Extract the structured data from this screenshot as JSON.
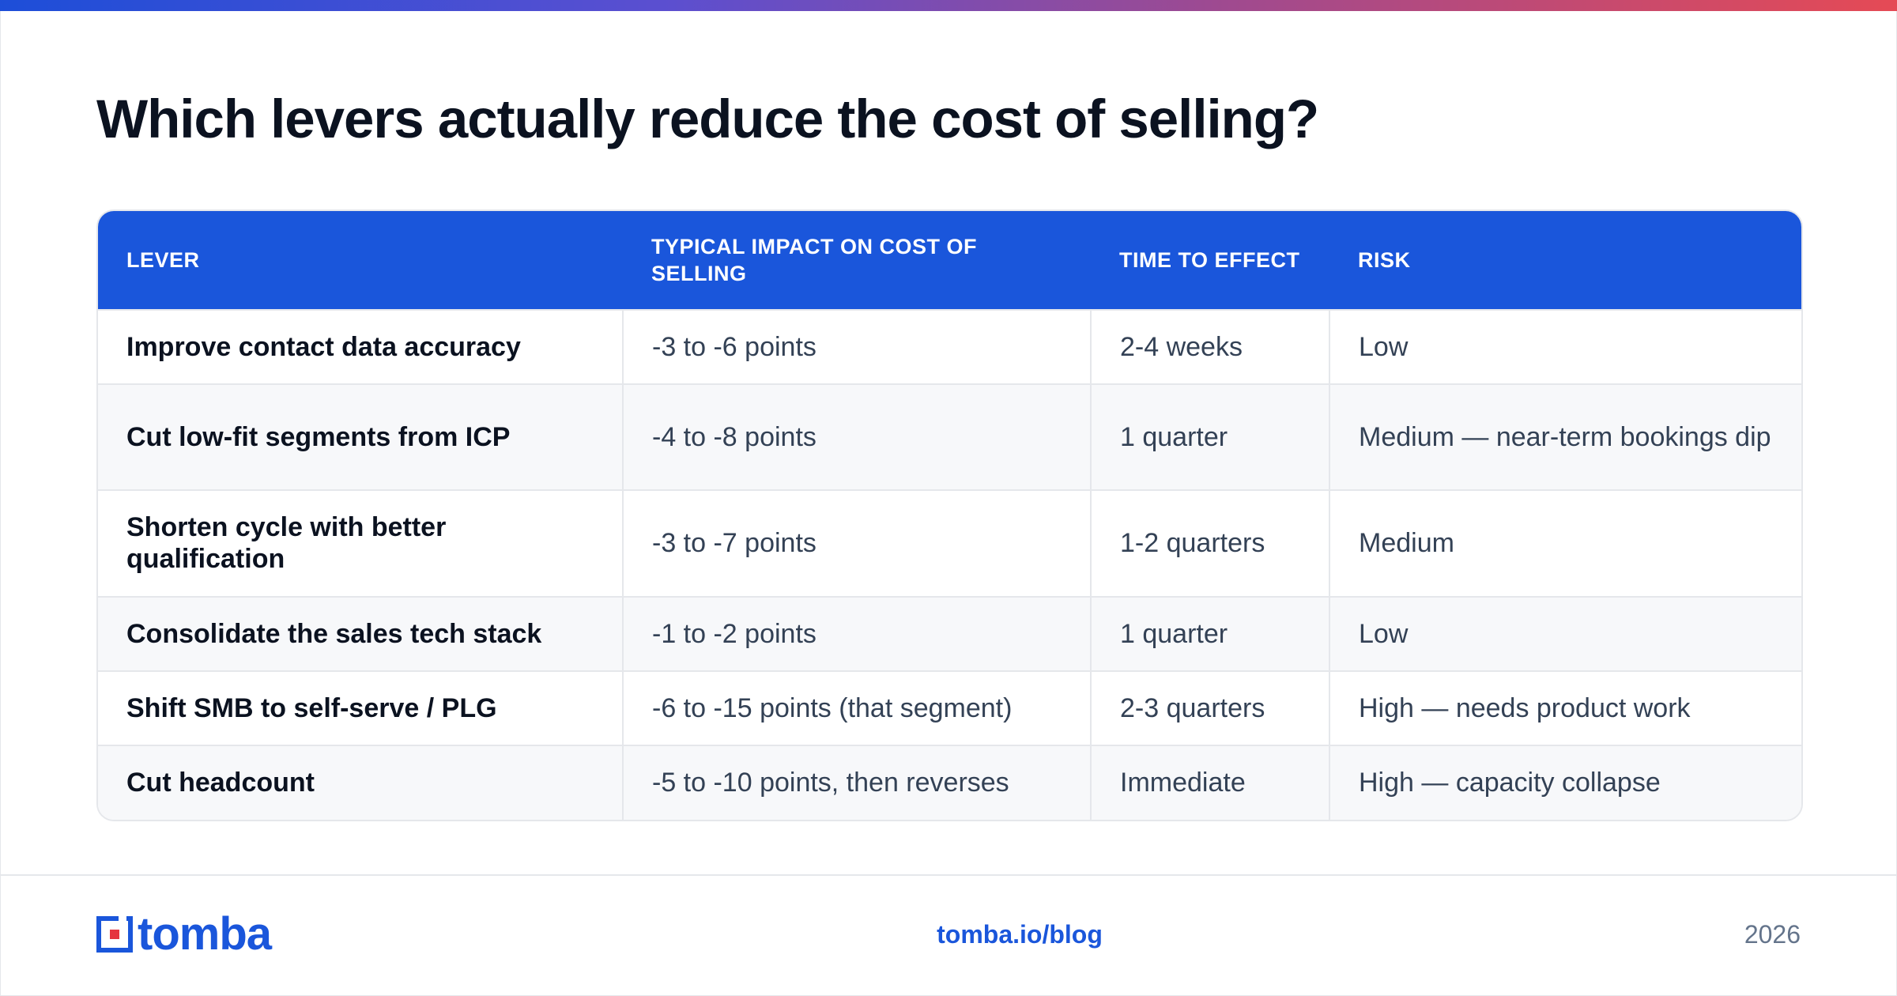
{
  "title": "Which levers actually reduce the cost of selling?",
  "table": {
    "headers": [
      "LEVER",
      "TYPICAL IMPACT ON COST OF SELLING",
      "TIME TO EFFECT",
      "RISK"
    ],
    "rows": [
      {
        "lever": "Improve contact data accuracy",
        "impact": "-3 to -6 points",
        "time": "2-4 weeks",
        "risk": "Low"
      },
      {
        "lever": "Cut low-fit segments from ICP",
        "impact": "-4 to -8 points",
        "time": "1 quarter",
        "risk": "Medium — near-term bookings dip"
      },
      {
        "lever": "Shorten cycle with better qualification",
        "impact": "-3 to -7 points",
        "time": "1-2 quarters",
        "risk": "Medium"
      },
      {
        "lever": "Consolidate the sales tech stack",
        "impact": "-1 to -2 points",
        "time": "1 quarter",
        "risk": "Low"
      },
      {
        "lever": "Shift SMB to self-serve / PLG",
        "impact": "-6 to -15 points (that segment)",
        "time": "2-3 quarters",
        "risk": "High — needs product work"
      },
      {
        "lever": "Cut headcount",
        "impact": "-5 to -10 points, then reverses",
        "time": "Immediate",
        "risk": "High — capacity collapse"
      }
    ]
  },
  "footer": {
    "logo_text": "tomba",
    "logo_icon": "tomba-logo-icon",
    "link": "tomba.io/blog",
    "year": "2026"
  },
  "colors": {
    "brand_blue": "#1a56db",
    "accent_gradient": [
      "#1d4ed8",
      "#5b4fd0",
      "#a04a8f",
      "#e54a55"
    ],
    "heading": "#0b1220",
    "body_text": "#334155",
    "muted": "#64748b"
  }
}
